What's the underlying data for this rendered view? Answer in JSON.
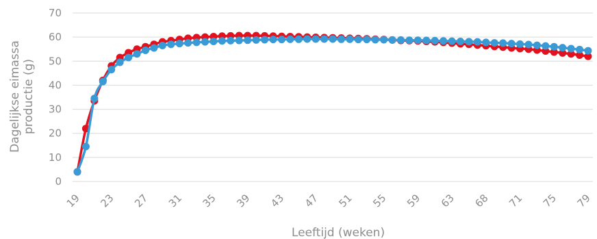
{
  "chart_data": {
    "type": "line",
    "title": "",
    "xlabel": "Leeftijd (weken)",
    "ylabel_lines": [
      "Dagelijkse eimassa",
      "productie (g)"
    ],
    "ylim": [
      0,
      70
    ],
    "y_ticks": [
      0,
      10,
      20,
      30,
      40,
      50,
      60,
      70
    ],
    "x_tick_labels": [
      "19",
      "23",
      "27",
      "31",
      "35",
      "39",
      "43",
      "47",
      "51",
      "55",
      "59",
      "63",
      "68",
      "71",
      "75",
      "79"
    ],
    "grid": true,
    "legend": "none",
    "x": [
      19,
      20,
      21,
      22,
      23,
      24,
      25,
      26,
      27,
      28,
      29,
      30,
      31,
      32,
      33,
      34,
      35,
      36,
      37,
      38,
      39,
      40,
      41,
      42,
      43,
      44,
      45,
      46,
      47,
      48,
      49,
      50,
      51,
      52,
      53,
      54,
      55,
      56,
      57,
      58,
      59,
      60,
      61,
      62,
      63,
      64,
      65,
      66,
      67,
      68,
      69,
      70,
      71,
      72,
      73,
      74,
      75,
      76,
      77,
      78,
      79
    ],
    "series": [
      {
        "color": "#e3111d",
        "values": [
          4.0,
          22.0,
          33.5,
          42.0,
          48.0,
          51.5,
          53.5,
          55.0,
          56.0,
          57.0,
          58.0,
          58.5,
          59.0,
          59.5,
          59.8,
          60.0,
          60.2,
          60.4,
          60.5,
          60.6,
          60.6,
          60.6,
          60.5,
          60.4,
          60.3,
          60.2,
          60.1,
          60.0,
          59.9,
          59.8,
          59.7,
          59.6,
          59.5,
          59.4,
          59.3,
          59.1,
          59.0,
          58.8,
          58.6,
          58.5,
          58.4,
          58.2,
          58.0,
          57.8,
          57.5,
          57.2,
          57.0,
          56.7,
          56.4,
          56.1,
          55.8,
          55.5,
          55.2,
          55.0,
          54.6,
          54.2,
          53.8,
          53.4,
          53.0,
          52.5,
          52.0
        ]
      },
      {
        "color": "#3a9ad5",
        "values": [
          4.0,
          14.5,
          34.5,
          41.5,
          46.5,
          49.5,
          51.5,
          53.0,
          54.5,
          55.5,
          56.5,
          57.0,
          57.3,
          57.6,
          57.8,
          58.0,
          58.2,
          58.4,
          58.5,
          58.6,
          58.7,
          58.8,
          58.9,
          59.0,
          59.0,
          59.1,
          59.1,
          59.2,
          59.2,
          59.2,
          59.2,
          59.1,
          59.1,
          59.0,
          59.0,
          58.9,
          58.9,
          58.8,
          58.8,
          58.7,
          58.7,
          58.6,
          58.5,
          58.4,
          58.3,
          58.2,
          58.1,
          58.0,
          57.8,
          57.6,
          57.5,
          57.3,
          57.1,
          56.9,
          56.6,
          56.3,
          56.0,
          55.6,
          55.2,
          54.8,
          54.3
        ]
      }
    ]
  }
}
